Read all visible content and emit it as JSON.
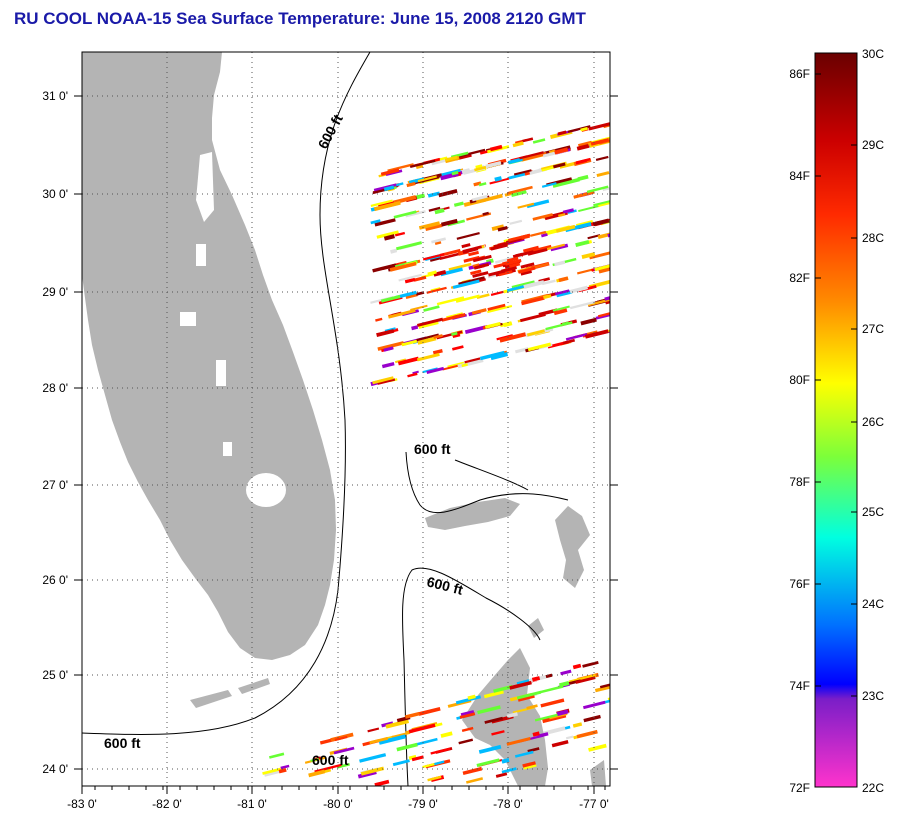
{
  "title": "RU COOL  NOAA-15  Sea Surface Temperature:  June 15, 2008 2120 GMT",
  "map": {
    "lat_labels": [
      "31 0'",
      "30 0'",
      "29 0'",
      "28 0'",
      "27 0'",
      "26 0'",
      "25 0'",
      "24 0'"
    ],
    "lon_labels": [
      "-83 0'",
      "-82 0'",
      "-81 0'",
      "-80 0'",
      "-79 0'",
      "-78 0'",
      "-77 0'"
    ],
    "contour_labels": [
      "600 ft",
      "600 ft",
      "600 ft",
      "600 ft",
      "600 ft"
    ],
    "colors": {
      "land": "#b4b4b4",
      "grid": "#555555"
    }
  },
  "colorbar": {
    "fahrenheit_labels": [
      "86F",
      "84F",
      "82F",
      "80F",
      "78F",
      "76F",
      "74F",
      "72F"
    ],
    "celsius_labels": [
      "30C",
      "29C",
      "28C",
      "27C",
      "26C",
      "25C",
      "24C",
      "23C",
      "22C"
    ]
  }
}
